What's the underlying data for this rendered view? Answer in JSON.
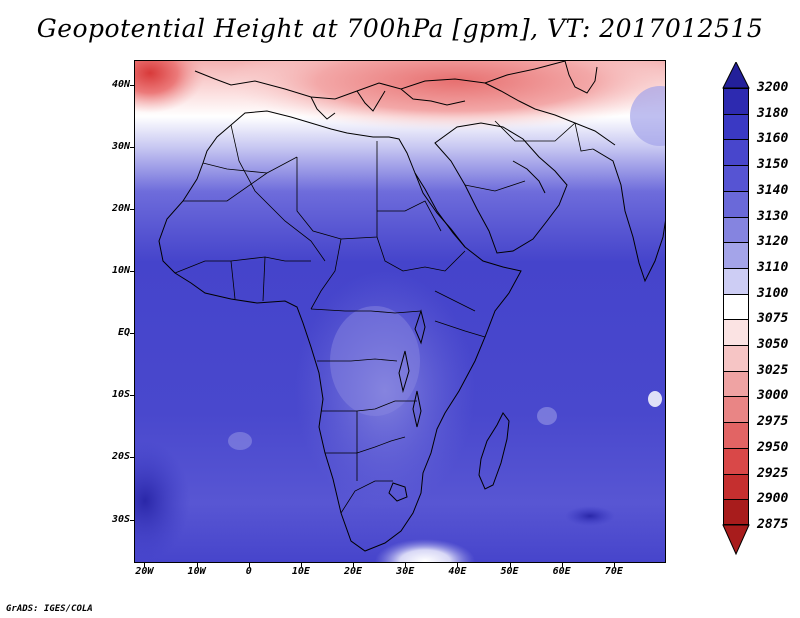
{
  "title": "Geopotential Height at 700hPa [gpm], VT: 2017012515",
  "footer": "GrADS: IGES/COLA",
  "map": {
    "lat_labels": [
      "40N",
      "30N",
      "20N",
      "10N",
      "EQ",
      "10S",
      "20S",
      "30S"
    ],
    "lat_values": [
      40,
      30,
      20,
      10,
      0,
      -10,
      -20,
      -30
    ],
    "lon_labels": [
      "20W",
      "10W",
      "0",
      "10E",
      "20E",
      "30E",
      "40E",
      "50E",
      "60E",
      "70E"
    ],
    "lon_values": [
      -20,
      -10,
      0,
      10,
      20,
      30,
      40,
      50,
      60,
      70
    ],
    "lat_range": [
      -37,
      44
    ],
    "lon_range": [
      -22,
      80
    ]
  },
  "colorbar": {
    "labels": [
      "3200",
      "3180",
      "3160",
      "3150",
      "3140",
      "3130",
      "3120",
      "3110",
      "3100",
      "3075",
      "3050",
      "3025",
      "3000",
      "2975",
      "2950",
      "2925",
      "2900",
      "2875"
    ],
    "colors": [
      "#23209a",
      "#2d2ab0",
      "#3a39c4",
      "#4846cc",
      "#5654d3",
      "#6a69d9",
      "#8584e0",
      "#a4a4e9",
      "#cdcdf4",
      "#ffffff",
      "#fbe3e3",
      "#f6c5c5",
      "#efa3a3",
      "#e98585",
      "#e26464",
      "#d94848",
      "#c52f2f",
      "#a81c1c",
      "#8e1313"
    ],
    "top_arrow_color": "#23209a",
    "bottom_arrow_color": "#a81c1c"
  }
}
